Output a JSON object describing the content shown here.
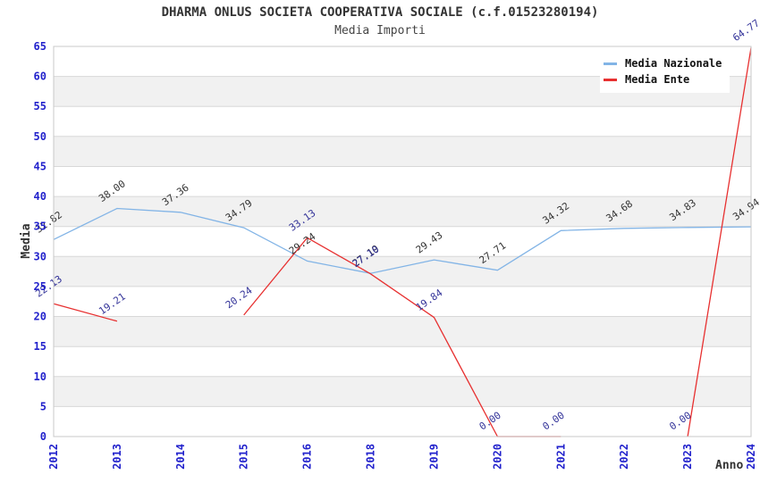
{
  "chart_data": {
    "type": "line",
    "title": "DHARMA ONLUS SOCIETA COOPERATIVA SOCIALE (c.f.01523280194)",
    "subtitle": "Media Importi",
    "xlabel": "Anno",
    "ylabel": "Media",
    "x": [
      2012,
      2013,
      2014,
      2015,
      2016,
      2018,
      2019,
      2020,
      2021,
      2022,
      2023,
      2024
    ],
    "series": [
      {
        "name": "Media Nazionale",
        "color": "#82b4e6",
        "label_color": "#333333",
        "values": [
          32.82,
          38.0,
          37.36,
          34.79,
          29.24,
          27.19,
          29.43,
          27.71,
          34.32,
          34.68,
          34.83,
          34.94
        ]
      },
      {
        "name": "Media Ente",
        "color": "#e73030",
        "label_color": "#333399",
        "values": [
          22.13,
          19.21,
          null,
          20.24,
          33.13,
          27.1,
          19.84,
          0.0,
          0.0,
          null,
          0.0,
          64.77
        ]
      }
    ],
    "ylim": [
      0,
      65
    ],
    "ytick": 5,
    "grid": true,
    "legend_position": "top-right",
    "colors": {
      "tick_label": "#2222cc",
      "band": "#f1f1f1",
      "grid": "#d8d8d8",
      "border": "#c8c8c8"
    }
  }
}
